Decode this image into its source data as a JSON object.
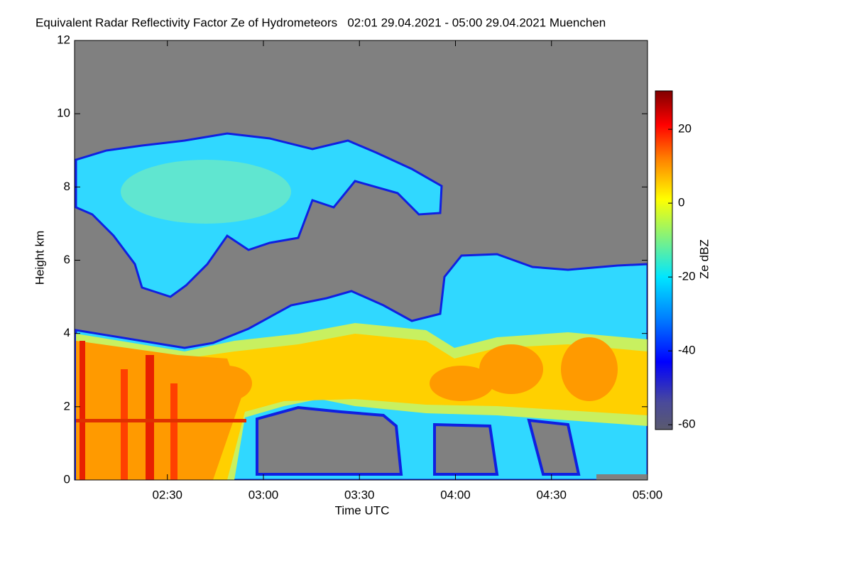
{
  "chart_data": {
    "type": "heatmap",
    "title": "Equivalent Radar Reflectivity Factor Ze of Hydrometeors   02:01 29.04.2021 - 05:00 29.04.2021 Muenchen",
    "x_label": "Time UTC",
    "y_label": "Height km",
    "colorbar_label": "Ze dBZ",
    "xlim": [
      "02:01",
      "05:00"
    ],
    "xticks": [
      "02:30",
      "03:00",
      "03:30",
      "04:00",
      "04:30",
      "05:00"
    ],
    "ylim": [
      0,
      12
    ],
    "yticks": [
      0,
      2,
      4,
      6,
      8,
      10,
      12
    ],
    "clim": [
      -61.3,
      30.4
    ],
    "cticks": [
      -60,
      -40,
      -20,
      0,
      20
    ]
  }
}
